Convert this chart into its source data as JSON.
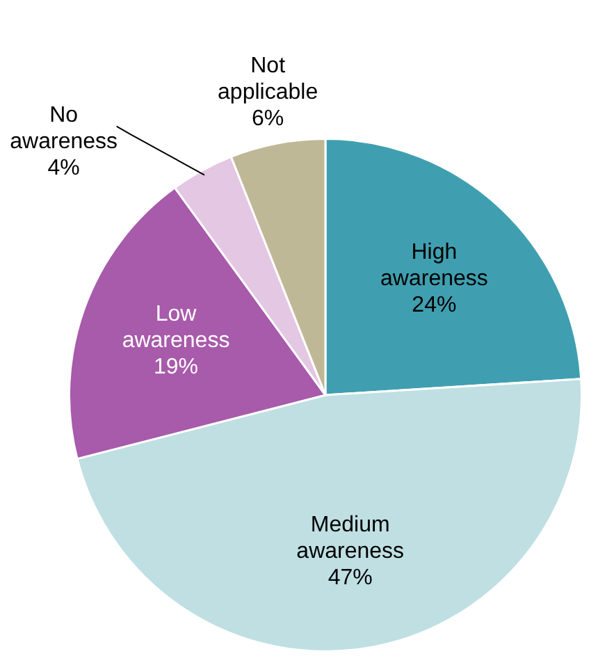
{
  "chart_data": {
    "type": "pie",
    "categories": [
      "High awareness",
      "Medium awareness",
      "Low awareness",
      "No awareness",
      "Not applicable"
    ],
    "values": [
      24,
      47,
      19,
      4,
      6
    ],
    "colors": [
      "#3f9fb0",
      "#bfdfe3",
      "#a85aab",
      "#e4c7e3",
      "#bfb896"
    ],
    "value_labels": [
      "24%",
      "47%",
      "19%",
      "4%",
      "6%"
    ],
    "legend": false
  }
}
